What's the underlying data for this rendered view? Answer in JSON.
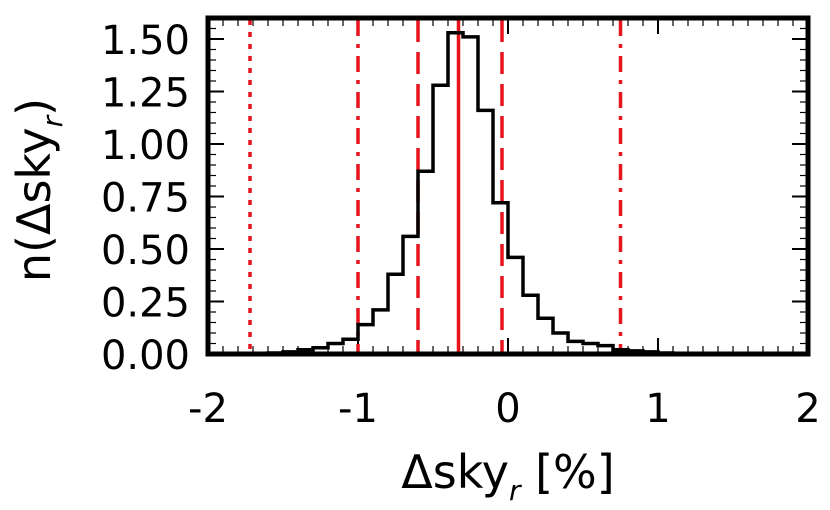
{
  "chart_data": {
    "type": "histogram",
    "xlabel": "Δsky",
    "xlabel_sub": "r",
    "xlabel_suffix": " [%]",
    "ylabel": "n(Δsky",
    "ylabel_sub": "r",
    "ylabel_suffix": ")",
    "xlim": [
      -2,
      2
    ],
    "ylim": [
      0,
      1.6
    ],
    "xticks": [
      -2,
      -1,
      0,
      1,
      2
    ],
    "xtick_labels": [
      "-2",
      "-1",
      "0",
      "1",
      "2"
    ],
    "yticks": [
      0,
      0.25,
      0.5,
      0.75,
      1.0,
      1.25,
      1.5
    ],
    "ytick_labels": [
      "0.00",
      "0.25",
      "0.50",
      "0.75",
      "1.00",
      "1.25",
      "1.50"
    ],
    "grid": false,
    "bin_width": 0.1,
    "bin_left_edges": [
      -2.0,
      -1.9,
      -1.8,
      -1.7,
      -1.6,
      -1.5,
      -1.4,
      -1.3,
      -1.2,
      -1.1,
      -1.0,
      -0.9,
      -0.8,
      -0.7,
      -0.6,
      -0.5,
      -0.4,
      -0.3,
      -0.2,
      -0.1,
      0.0,
      0.1,
      0.2,
      0.3,
      0.4,
      0.5,
      0.6,
      0.7,
      0.8,
      0.9,
      1.0,
      1.1,
      1.2,
      1.3,
      1.4,
      1.5,
      1.6,
      1.7,
      1.8,
      1.9
    ],
    "bin_values": [
      0.0,
      0.0,
      0.0,
      0.0,
      0.005,
      0.01,
      0.02,
      0.03,
      0.05,
      0.07,
      0.14,
      0.21,
      0.38,
      0.56,
      0.87,
      1.28,
      1.53,
      1.51,
      1.16,
      0.72,
      0.46,
      0.28,
      0.17,
      0.1,
      0.06,
      0.05,
      0.04,
      0.02,
      0.015,
      0.01,
      0.005,
      0.0,
      0.0,
      0.0,
      0.0,
      0.0,
      0.0,
      0.0,
      0.0,
      0.0
    ],
    "reference_lines": [
      {
        "x": -0.33,
        "style": "solid",
        "color": "#e8141c"
      },
      {
        "x": -0.6,
        "style": "dashed",
        "color": "#e8141c"
      },
      {
        "x": -0.04,
        "style": "dashed",
        "color": "#e8141c"
      },
      {
        "x": -1.0,
        "style": "dashdot",
        "color": "#e8141c"
      },
      {
        "x": 0.75,
        "style": "dashdot",
        "color": "#e8141c"
      },
      {
        "x": -1.72,
        "style": "dotted",
        "color": "#e8141c"
      }
    ],
    "line_color": "#000000"
  }
}
